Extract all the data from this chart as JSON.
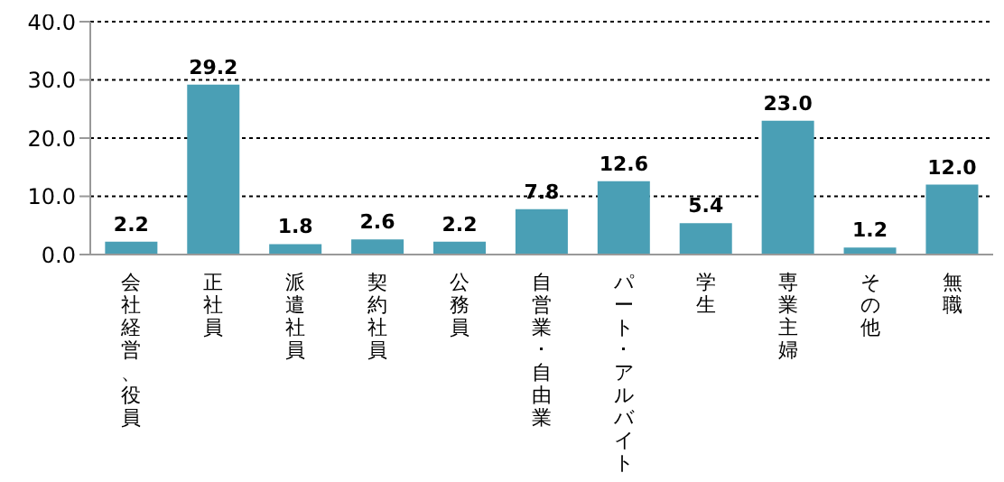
{
  "chart_data": {
    "type": "bar",
    "categories": [
      "会社経営、役員",
      "正社員",
      "派遣社員",
      "契約社員",
      "公務員",
      "自営業･自由業",
      "パート･アルバイト",
      "学生",
      "専業主婦",
      "その他",
      "無職"
    ],
    "values": [
      2.2,
      29.2,
      1.8,
      2.6,
      2.2,
      7.8,
      12.6,
      5.4,
      23.0,
      1.2,
      12.0
    ],
    "value_labels": [
      "2.2",
      "29.2",
      "1.8",
      "2.6",
      "2.2",
      "7.8",
      "12.6",
      "5.4",
      "23.0",
      "1.2",
      "12.0"
    ],
    "color": "#4a9fb5",
    "ylim": [
      0,
      40
    ],
    "yticks": [
      {
        "value": 0,
        "label": "0.0"
      },
      {
        "value": 10,
        "label": "10.0"
      },
      {
        "value": 20,
        "label": "20.0"
      },
      {
        "value": 30,
        "label": "30.0"
      },
      {
        "value": 40,
        "label": "40.0"
      }
    ],
    "grid": "y",
    "legend": false
  }
}
